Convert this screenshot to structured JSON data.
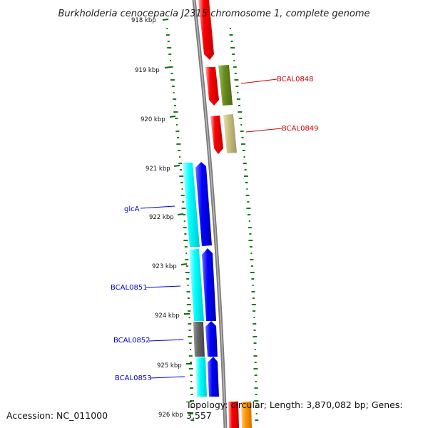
{
  "title": "Burkholderia cenocepacia J2315 chromosome 1, complete genome",
  "footer": {
    "accession": "Accession: NC_011000",
    "topology": "Topology: circular; Length: 3,870,082 bp; Genes: 3,557"
  },
  "ruler": {
    "labels": [
      "918 kbp",
      "919 kbp",
      "920 kbp",
      "921 kbp",
      "922 kbp",
      "923 kbp",
      "924 kbp",
      "925 kbp",
      "926 kbp"
    ]
  },
  "colors": {
    "forward_cds": "#ff0000",
    "forward_gene_olive": "#6b8e23",
    "forward_gene_khaki": "#c8c080",
    "reverse_cds": "#0000ff",
    "reverse_gene_cyan": "#00ffff",
    "reverse_gene_gray": "#666666",
    "orange_gene": "#ff9900",
    "backbone": "#888888",
    "gc_skew": "#1a7a1a",
    "label_forward": "#cc0000",
    "label_reverse": "#0000cc"
  },
  "gene_labels": [
    {
      "name": "BCAL0848",
      "strand": "forward"
    },
    {
      "name": "BCAL0849",
      "strand": "forward"
    },
    {
      "name": "glcA",
      "strand": "reverse"
    },
    {
      "name": "BCAL0851",
      "strand": "reverse"
    },
    {
      "name": "BCAL0852",
      "strand": "reverse"
    },
    {
      "name": "BCAL0853",
      "strand": "reverse"
    }
  ]
}
